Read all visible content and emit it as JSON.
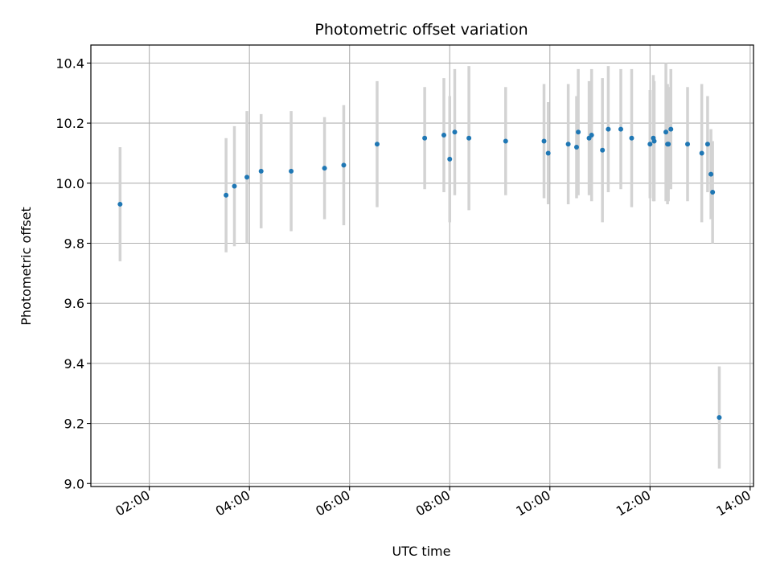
{
  "chart_data": {
    "type": "scatter",
    "title": "Photometric offset variation",
    "xlabel": "UTC time",
    "ylabel": "Photometric offset",
    "x_ticks": [
      "02:00",
      "04:00",
      "06:00",
      "08:00",
      "10:00",
      "12:00",
      "14:00"
    ],
    "y_ticks": [
      "9.0",
      "9.2",
      "9.4",
      "9.6",
      "9.8",
      "10.0",
      "10.2",
      "10.4"
    ],
    "xlim": [
      "00:50",
      "14:04"
    ],
    "ylim": [
      8.99,
      10.46
    ],
    "grid": true,
    "colors": {
      "point": "#1f77b4",
      "errorbar": "#d3d3d3",
      "grid": "#b0b0b0"
    },
    "points": [
      {
        "x": "01:25",
        "y": 9.93,
        "err": 0.19
      },
      {
        "x": "03:32",
        "y": 9.96,
        "err": 0.19
      },
      {
        "x": "03:42",
        "y": 9.99,
        "err": 0.2
      },
      {
        "x": "03:57",
        "y": 10.02,
        "err": 0.22
      },
      {
        "x": "04:14",
        "y": 10.04,
        "err": 0.19
      },
      {
        "x": "04:50",
        "y": 10.04,
        "err": 0.2
      },
      {
        "x": "05:30",
        "y": 10.05,
        "err": 0.17
      },
      {
        "x": "05:53",
        "y": 10.06,
        "err": 0.2
      },
      {
        "x": "06:33",
        "y": 10.13,
        "err": 0.21
      },
      {
        "x": "07:30",
        "y": 10.15,
        "err": 0.17
      },
      {
        "x": "07:53",
        "y": 10.16,
        "err": 0.19
      },
      {
        "x": "08:00",
        "y": 10.08,
        "err": 0.21
      },
      {
        "x": "08:06",
        "y": 10.17,
        "err": 0.21
      },
      {
        "x": "08:23",
        "y": 10.15,
        "err": 0.24
      },
      {
        "x": "09:07",
        "y": 10.14,
        "err": 0.18
      },
      {
        "x": "09:53",
        "y": 10.14,
        "err": 0.19
      },
      {
        "x": "09:58",
        "y": 10.1,
        "err": 0.17
      },
      {
        "x": "10:22",
        "y": 10.13,
        "err": 0.2
      },
      {
        "x": "10:32",
        "y": 10.12,
        "err": 0.17
      },
      {
        "x": "10:34",
        "y": 10.17,
        "err": 0.21
      },
      {
        "x": "10:47",
        "y": 10.15,
        "err": 0.19
      },
      {
        "x": "10:50",
        "y": 10.16,
        "err": 0.22
      },
      {
        "x": "11:03",
        "y": 10.11,
        "err": 0.24
      },
      {
        "x": "11:10",
        "y": 10.18,
        "err": 0.21
      },
      {
        "x": "11:25",
        "y": 10.18,
        "err": 0.2
      },
      {
        "x": "11:38",
        "y": 10.15,
        "err": 0.23
      },
      {
        "x": "12:00",
        "y": 10.13,
        "err": 0.18
      },
      {
        "x": "12:04",
        "y": 10.15,
        "err": 0.21
      },
      {
        "x": "12:05",
        "y": 10.14,
        "err": 0.2
      },
      {
        "x": "12:19",
        "y": 10.17,
        "err": 0.23
      },
      {
        "x": "12:21",
        "y": 10.13,
        "err": 0.2
      },
      {
        "x": "12:22",
        "y": 10.13,
        "err": 0.19
      },
      {
        "x": "12:25",
        "y": 10.18,
        "err": 0.2
      },
      {
        "x": "12:45",
        "y": 10.13,
        "err": 0.19
      },
      {
        "x": "13:02",
        "y": 10.1,
        "err": 0.23
      },
      {
        "x": "13:09",
        "y": 10.13,
        "err": 0.16
      },
      {
        "x": "13:13",
        "y": 10.03,
        "err": 0.15
      },
      {
        "x": "13:15",
        "y": 9.97,
        "err": 0.17
      },
      {
        "x": "13:23",
        "y": 9.22,
        "err": 0.17
      }
    ]
  }
}
